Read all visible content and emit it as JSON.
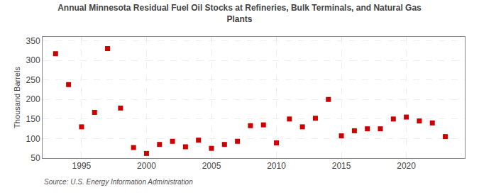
{
  "chart_data": {
    "type": "scatter",
    "title": "Annual Minnesota Residual Fuel Oil Stocks at Refineries, Bulk Terminals, and Natural Gas\nPlants",
    "y_label": "Thousand Barrels",
    "annotations": [
      "Source: U.S. Energy Information Administration"
    ],
    "x": [
      1993,
      1994,
      1995,
      1996,
      1997,
      1998,
      1999,
      2000,
      2001,
      2002,
      2003,
      2004,
      2005,
      2006,
      2007,
      2008,
      2009,
      2010,
      2011,
      2012,
      2013,
      2014,
      2015,
      2016,
      2017,
      2018,
      2019,
      2020,
      2021,
      2022,
      2023
    ],
    "values": [
      317,
      238,
      130,
      167,
      330,
      178,
      77,
      62,
      85,
      93,
      79,
      96,
      75,
      85,
      93,
      133,
      135,
      89,
      150,
      130,
      152,
      200,
      107,
      120,
      125,
      125,
      150,
      155,
      145,
      140,
      105
    ],
    "color": "#cc0000",
    "marker": "square",
    "xlim": [
      1992,
      2024.5
    ],
    "ylim": [
      50,
      360
    ],
    "xticks": [
      1995,
      2000,
      2005,
      2010,
      2015,
      2020
    ],
    "yticks": [
      50,
      100,
      150,
      200,
      250,
      300,
      350
    ],
    "grid": true
  }
}
